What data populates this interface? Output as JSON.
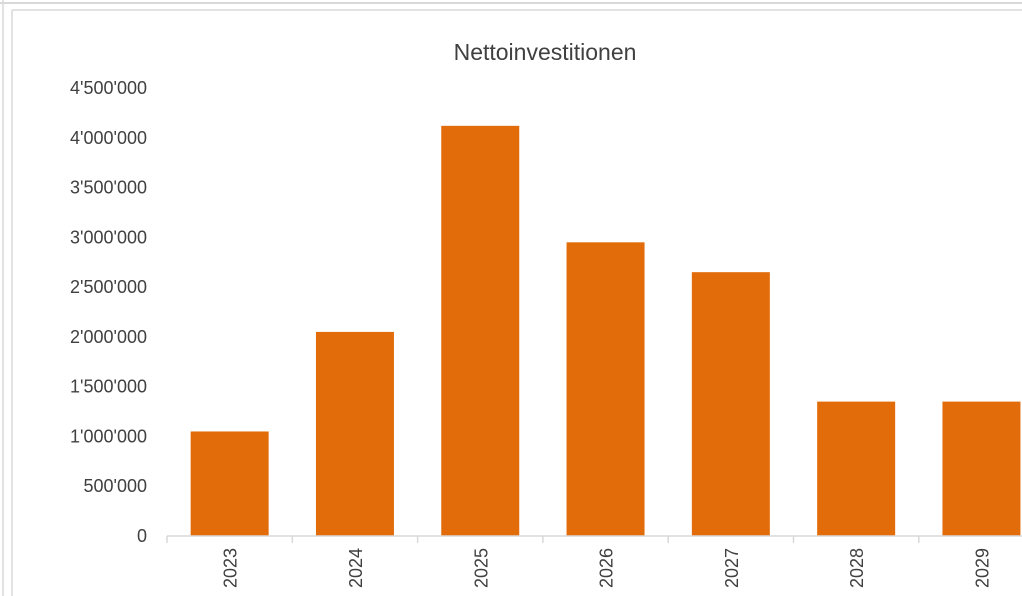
{
  "chart_data": {
    "type": "bar",
    "title": "Nettoinvestitionen",
    "xlabel": "",
    "ylabel": "",
    "categories": [
      "2023",
      "2024",
      "2025",
      "2026",
      "2027",
      "2028",
      "2029"
    ],
    "series": [
      {
        "values": [
          1050000,
          2050000,
          4120000,
          2950000,
          2650000,
          1350000,
          1350000
        ]
      }
    ],
    "ylim": [
      0,
      4500000
    ],
    "yticks": [
      0,
      500000,
      1000000,
      1500000,
      2000000,
      2500000,
      3000000,
      3500000,
      4000000,
      4500000
    ],
    "ytick_labels": [
      "0",
      "500'000",
      "1'000'000",
      "1'500'000",
      "2'000'000",
      "2'500'000",
      "3'000'000",
      "3'500'000",
      "4'000'000",
      "4'500'000"
    ],
    "grid": false,
    "legend": "none",
    "bar_color": "#E36C0A",
    "axis_color": "#D9D9D9",
    "text_color": "#404040"
  }
}
